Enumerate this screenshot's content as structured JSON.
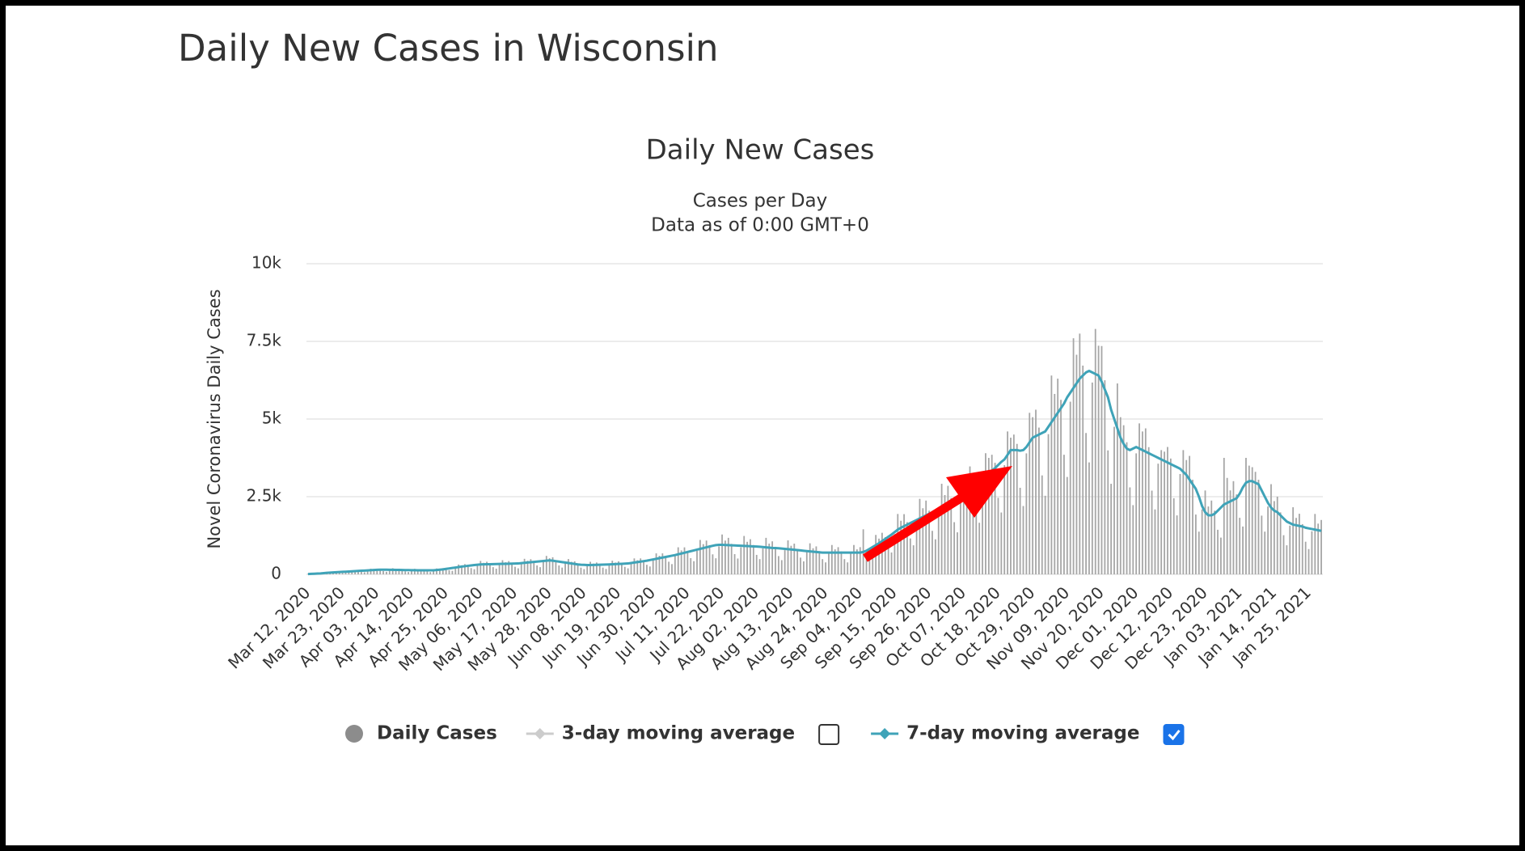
{
  "page_title": "Daily New Cases in Wisconsin",
  "chart_data": {
    "type": "bar_line",
    "title": "Daily New Cases",
    "subtitle": "Cases per Day",
    "note": "Data as of 0:00 GMT+0",
    "y_label": "Novel Coronavirus Daily Cases",
    "ylim": [
      0,
      10000
    ],
    "yticks": [
      0,
      {
        "value": 2500,
        "label": "2.5k"
      },
      {
        "value": 5000,
        "label": "5k"
      },
      {
        "value": 7500,
        "label": "7.5k"
      },
      {
        "value": 10000,
        "label": "10k"
      }
    ],
    "grid": true,
    "categories": [
      "Mar 12, 2020",
      null,
      null,
      null,
      null,
      null,
      null,
      null,
      null,
      null,
      null,
      "Mar 23, 2020",
      null,
      null,
      null,
      null,
      null,
      null,
      null,
      null,
      null,
      null,
      "Apr 03, 2020",
      null,
      null,
      null,
      null,
      null,
      null,
      null,
      null,
      null,
      null,
      "Apr 14, 2020",
      null,
      null,
      null,
      null,
      null,
      null,
      null,
      null,
      null,
      null,
      "Apr 25, 2020",
      null,
      null,
      null,
      null,
      null,
      null,
      null,
      null,
      null,
      null,
      "May 06, 2020",
      null,
      null,
      null,
      null,
      null,
      null,
      null,
      null,
      null,
      null,
      "May 17, 2020",
      null,
      null,
      null,
      null,
      null,
      null,
      null,
      null,
      null,
      null,
      "May 28, 2020",
      null,
      null,
      null,
      null,
      null,
      null,
      null,
      null,
      null,
      null,
      "Jun 08, 2020",
      null,
      null,
      null,
      null,
      null,
      null,
      null,
      null,
      null,
      null,
      "Jun 19, 2020",
      null,
      null,
      null,
      null,
      null,
      null,
      null,
      null,
      null,
      null,
      "Jun 30, 2020",
      null,
      null,
      null,
      null,
      null,
      null,
      null,
      null,
      null,
      null,
      "Jul 11, 2020",
      null,
      null,
      null,
      null,
      null,
      null,
      null,
      null,
      null,
      null,
      "Jul 22, 2020",
      null,
      null,
      null,
      null,
      null,
      null,
      null,
      null,
      null,
      null,
      "Aug 02, 2020",
      null,
      null,
      null,
      null,
      null,
      null,
      null,
      null,
      null,
      null,
      "Aug 13, 2020",
      null,
      null,
      null,
      null,
      null,
      null,
      null,
      null,
      null,
      null,
      "Aug 24, 2020",
      null,
      null,
      null,
      null,
      null,
      null,
      null,
      null,
      null,
      null,
      "Sep 04, 2020",
      null,
      null,
      null,
      null,
      null,
      null,
      null,
      null,
      null,
      null,
      "Sep 15, 2020",
      null,
      null,
      null,
      null,
      null,
      null,
      null,
      null,
      null,
      null,
      "Sep 26, 2020",
      null,
      null,
      null,
      null,
      null,
      null,
      null,
      null,
      null,
      null,
      "Oct 07, 2020",
      null,
      null,
      null,
      null,
      null,
      null,
      null,
      null,
      null,
      null,
      "Oct 18, 2020",
      null,
      null,
      null,
      null,
      null,
      null,
      null,
      null,
      null,
      null,
      "Oct 29, 2020",
      null,
      null,
      null,
      null,
      null,
      null,
      null,
      null,
      null,
      null,
      "Nov 09, 2020",
      null,
      null,
      null,
      null,
      null,
      null,
      null,
      null,
      null,
      null,
      "Nov 20, 2020",
      null,
      null,
      null,
      null,
      null,
      null,
      null,
      null,
      null,
      null,
      "Dec 01, 2020",
      null,
      null,
      null,
      null,
      null,
      null,
      null,
      null,
      null,
      null,
      "Dec 12, 2020",
      null,
      null,
      null,
      null,
      null,
      null,
      null,
      null,
      null,
      null,
      "Dec 23, 2020",
      null,
      null,
      null,
      null,
      null,
      null,
      null,
      null,
      null,
      null,
      "Jan 03, 2021",
      null,
      null,
      null,
      null,
      null,
      null,
      null,
      null,
      null,
      null,
      "Jan 14, 2021",
      null,
      null,
      null,
      null,
      null,
      null,
      null,
      null,
      null,
      null,
      "Jan 25, 2021",
      null,
      null,
      null,
      null
    ],
    "series": [
      {
        "name": "Daily Cases",
        "kind": "bar",
        "color": "#a6a6a6",
        "legend_color": "#8c8c8c",
        "visible": true,
        "values": [
          12,
          19,
          21,
          18,
          17,
          38,
          68,
          64,
          78,
          71,
          52,
          44,
          82,
          124,
          113,
          130,
          116,
          81,
          67,
          122,
          181,
          161,
          181,
          158,
          105,
          83,
          141,
          197,
          166,
          178,
          147,
          97,
          75,
          127,
          178,
          150,
          163,
          137,
          91,
          72,
          124,
          189,
          173,
          200,
          184,
          133,
          113,
          209,
          317,
          288,
          328,
          289,
          201,
          165,
          295,
          432,
          370,
          406,
          343,
          231,
          183,
          318,
          455,
          391,
          428,
          362,
          244,
          193,
          342,
          500,
          437,
          488,
          420,
          287,
          231,
          409,
          594,
          518,
          550,
          446,
          287,
          217,
          361,
          493,
          403,
          419,
          336,
          217,
          168,
          285,
          405,
          347,
          381,
          323,
          218,
          174,
          304,
          439,
          380,
          419,
          357,
          242,
          193,
          347,
          513,
          454,
          513,
          446,
          308,
          253,
          456,
          675,
          598,
          675,
          588,
          406,
          330,
          589,
          871,
          771,
          869,
          756,
          522,
          424,
          755,
          1107,
          972,
          1088,
          940,
          644,
          517,
          903,
          1283,
          1087,
          1175,
          982,
          651,
          509,
          874,
          1235,
          1047,
          1131,
          945,
          627,
          490,
          836,
          1175,
          989,
          1063,
          887,
          588,
          457,
          779,
          1094,
          920,
          988,
          819,
          539,
          418,
          713,
          999,
          840,
          900,
          746,
          490,
          385,
          665,
          945,
          805,
          875,
          735,
          490,
          385,
          665,
          945,
          805,
          875,
          1450,
          532,
          451,
          836,
          1269,
          1150,
          1338,
          1197,
          847,
          704,
          1292,
          1944,
          1725,
          1938,
          1680,
          1155,
          935,
          1663,
          2430,
          2128,
          2375,
          2048,
          1400,
          1128,
          1995,
          2916,
          2553,
          2850,
          2457,
          1680,
          1353,
          2394,
          3010,
          3105,
          3475,
          3003,
          2058,
          1661,
          2945,
          3900,
          3749,
          3850,
          3591,
          2464,
          1991,
          3515,
          4600,
          4400,
          4500,
          4200,
          2786,
          2200,
          3895,
          5200,
          5060,
          5300,
          4725,
          3185,
          2530,
          4513,
          6400,
          5808,
          6300,
          5618,
          3850,
          3135,
          5558,
          7600,
          7070,
          7750,
          6720,
          4550,
          3603,
          6175,
          7900,
          7360,
          7350,
          6248,
          3990,
          2915,
          4750,
          6145,
          5060,
          4800,
          4253,
          2800,
          2228,
          3895,
          4860,
          4600,
          4700,
          4095,
          2695,
          2090,
          3563,
          4000,
          3950,
          4100,
          3728,
          2450,
          1898,
          3230,
          4000,
          3680,
          3813,
          3045,
          1925,
          1375,
          2090,
          2700,
          2185,
          2375,
          2048,
          1435,
          1183,
          3750,
          3105,
          2703,
          3000,
          2573,
          1820,
          1540,
          3750,
          3500,
          3450,
          3300,
          3045,
          1890,
          1375,
          2185,
          2903,
          2358,
          2500,
          1995,
          1260,
          935,
          1568,
          2160,
          1817,
          1950,
          1617,
          1050,
          814,
          1387,
          1944,
          1633,
          1750
        ]
      },
      {
        "name": "3-day moving average",
        "kind": "hidden",
        "color": "#cccccc",
        "visible": false,
        "checkbox": false
      },
      {
        "name": "7-day moving average",
        "kind": "line",
        "color": "#3fa3b8",
        "visible": true,
        "checkbox": true,
        "values": [
          10,
          15,
          20,
          25,
          30,
          40,
          50,
          56,
          62,
          68,
          74,
          80,
          86,
          92,
          98,
          104,
          110,
          116,
          122,
          128,
          134,
          140,
          145,
          150,
          150,
          150,
          148,
          146,
          144,
          142,
          140,
          138,
          136,
          134,
          132,
          130,
          130,
          130,
          130,
          130,
          130,
          140,
          150,
          160,
          175,
          190,
          205,
          220,
          235,
          250,
          262,
          275,
          287,
          300,
          310,
          320,
          322,
          325,
          327,
          330,
          332,
          335,
          337,
          340,
          342,
          345,
          348,
          350,
          360,
          370,
          380,
          390,
          400,
          410,
          420,
          430,
          440,
          450,
          440,
          425,
          410,
          395,
          380,
          365,
          350,
          335,
          320,
          310,
          305,
          300,
          300,
          302,
          305,
          308,
          312,
          316,
          320,
          325,
          330,
          335,
          340,
          345,
          350,
          365,
          380,
          395,
          410,
          425,
          440,
          460,
          480,
          500,
          520,
          540,
          560,
          580,
          600,
          620,
          645,
          670,
          695,
          720,
          745,
          770,
          795,
          820,
          845,
          870,
          895,
          920,
          940,
          950,
          950,
          945,
          940,
          935,
          930,
          925,
          920,
          915,
          910,
          905,
          900,
          895,
          890,
          880,
          870,
          860,
          850,
          845,
          840,
          830,
          820,
          810,
          800,
          790,
          780,
          770,
          760,
          750,
          740,
          730,
          720,
          710,
          700,
          700,
          700,
          700,
          700,
          700,
          700,
          700,
          700,
          700,
          700,
          700,
          700,
          720,
          760,
          820,
          880,
          940,
          1000,
          1070,
          1140,
          1210,
          1280,
          1360,
          1440,
          1500,
          1550,
          1600,
          1650,
          1700,
          1750,
          1800,
          1850,
          1900,
          1950,
          2000,
          2050,
          2100,
          2160,
          2220,
          2280,
          2340,
          2400,
          2460,
          2520,
          2600,
          2700,
          2780,
          2860,
          2940,
          3020,
          3100,
          3180,
          3260,
          3340,
          3420,
          3520,
          3620,
          3700,
          3850,
          4000,
          4000,
          4000,
          3980,
          4000,
          4100,
          4250,
          4400,
          4450,
          4500,
          4550,
          4600,
          4750,
          4900,
          5050,
          5200,
          5350,
          5500,
          5700,
          5850,
          6000,
          6150,
          6300,
          6400,
          6500,
          6550,
          6500,
          6450,
          6400,
          6200,
          5950,
          5700,
          5300,
          5000,
          4700,
          4400,
          4200,
          4050,
          4000,
          4050,
          4100,
          4050,
          4000,
          3950,
          3900,
          3850,
          3800,
          3750,
          3700,
          3650,
          3600,
          3550,
          3500,
          3450,
          3400,
          3300,
          3200,
          3050,
          2900,
          2750,
          2500,
          2200,
          2000,
          1900,
          1900,
          1950,
          2050,
          2150,
          2250,
          2300,
          2350,
          2400,
          2450,
          2600,
          2800,
          2950,
          3000,
          3000,
          2950,
          2900,
          2700,
          2500,
          2300,
          2150,
          2050,
          2000,
          1900,
          1800,
          1700,
          1650,
          1600,
          1580,
          1560,
          1540,
          1500,
          1480,
          1460,
          1440,
          1420,
          1400
        ]
      }
    ]
  }
}
